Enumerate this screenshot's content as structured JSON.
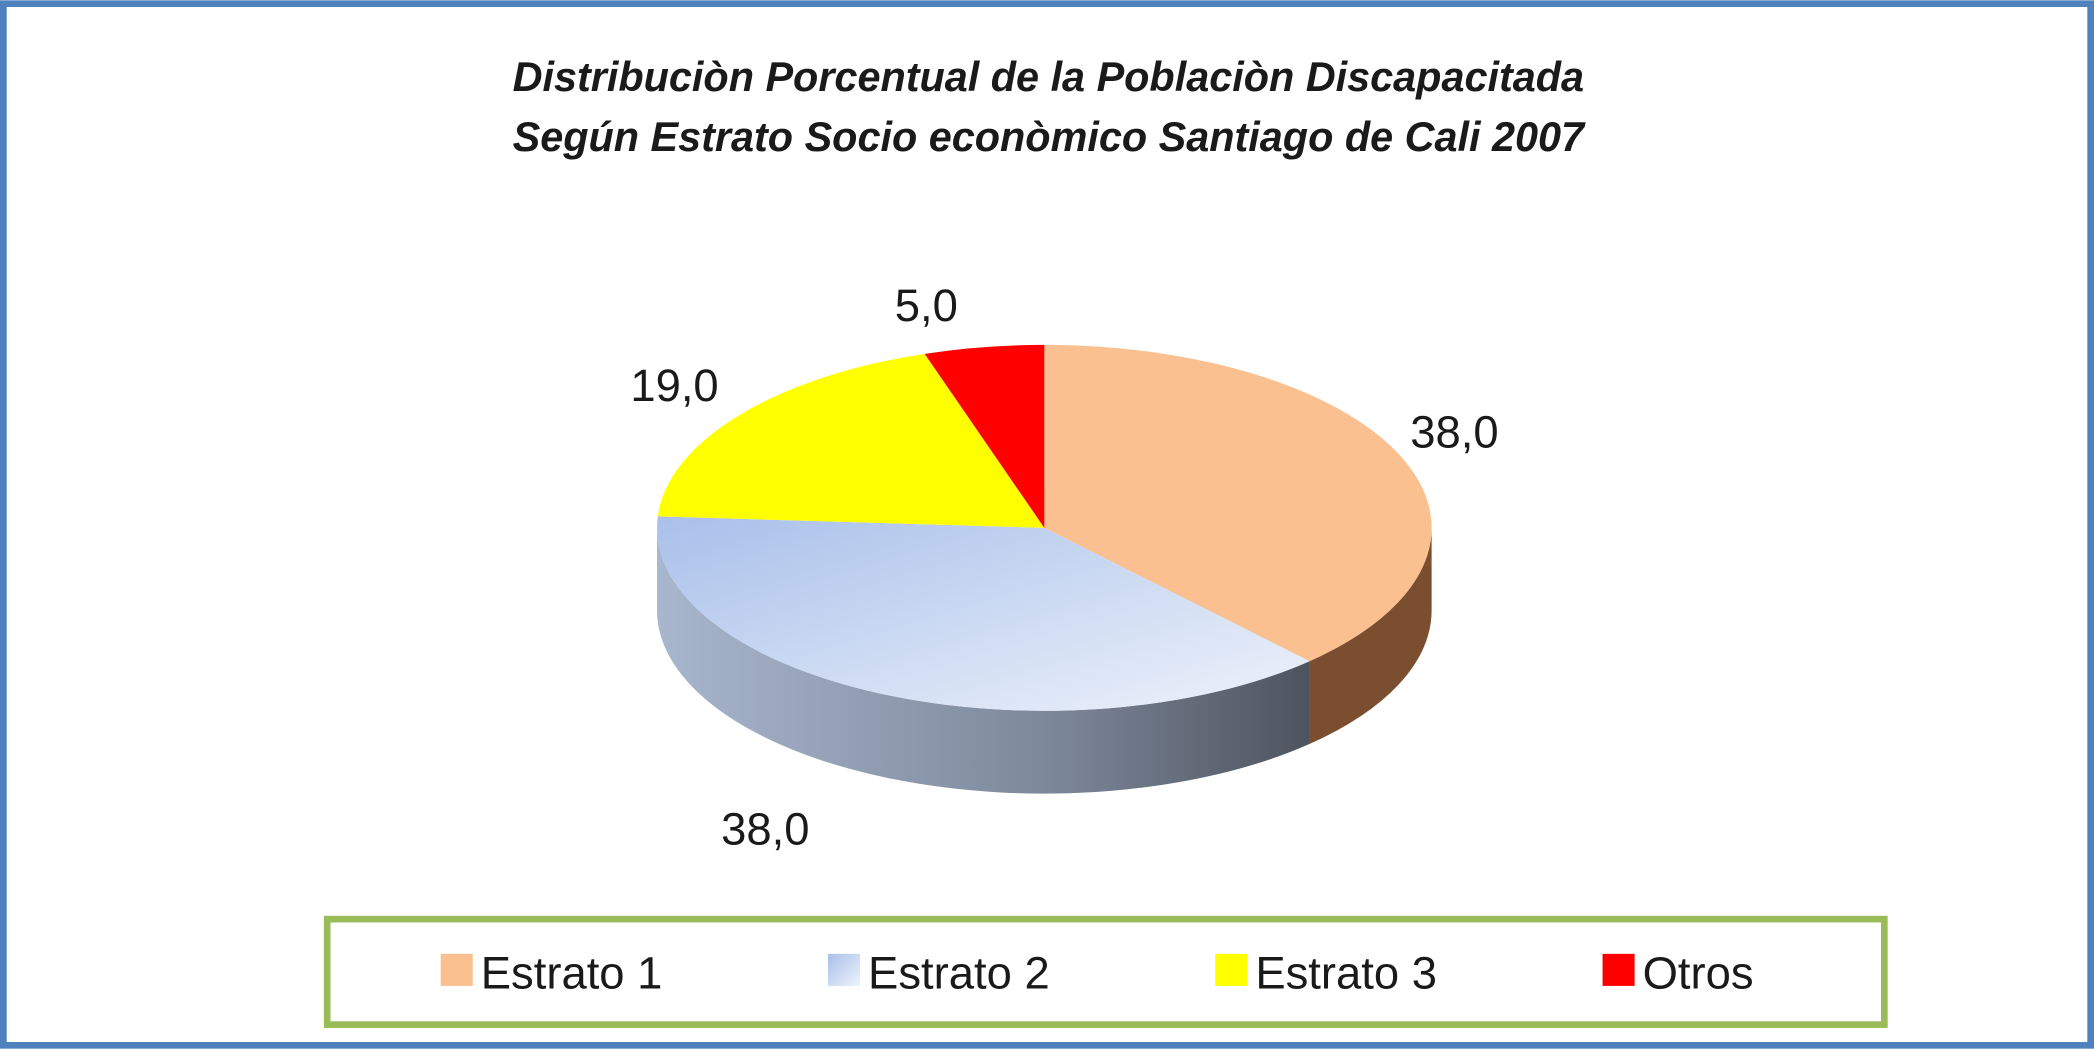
{
  "chart_data": {
    "type": "pie",
    "style": "3d",
    "title": "Distribuciòn Porcentual de la Poblaciòn Discapacitada",
    "subtitle": "Según Estrato Socio econòmico  Santiago de Cali 2007",
    "categories": [
      "Estrato 1",
      "Estrato 2",
      "Estrato 3",
      "Otros"
    ],
    "values": [
      38.0,
      38.0,
      19.0,
      5.0
    ],
    "data_labels": [
      "38,0",
      "38,0",
      "19,0",
      "5,0"
    ],
    "colors": [
      "#fac090",
      "#b9cdee",
      "#ffff00",
      "#ff0000"
    ],
    "side_colors": [
      "#7a4e2e",
      "#8595ad",
      "#b0b000",
      "#a00000"
    ],
    "legend_position": "bottom"
  },
  "frame": {
    "border_color": "#4f81bd",
    "legend_border_color": "#9bbb59"
  }
}
